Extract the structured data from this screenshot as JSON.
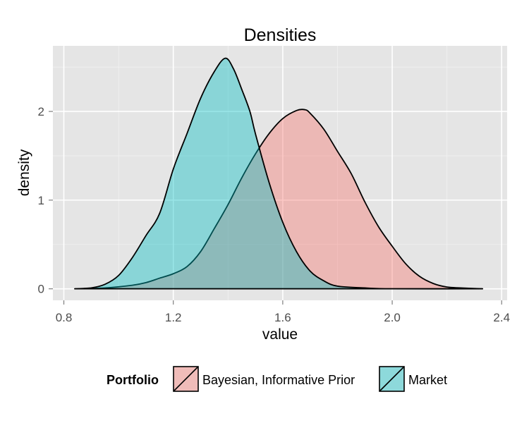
{
  "chart_data": {
    "type": "area",
    "title": "Densities",
    "xlabel": "value",
    "ylabel": "density",
    "xlim": [
      0.76,
      2.42
    ],
    "ylim": [
      -0.13,
      2.74
    ],
    "x_ticks": [
      "0.8",
      "1.2",
      "1.6",
      "2.0",
      "2.4"
    ],
    "x_tick_values": [
      0.8,
      1.2,
      1.6,
      2.0,
      2.4
    ],
    "y_ticks": [
      "0",
      "1",
      "2"
    ],
    "y_tick_values": [
      0,
      1,
      2
    ],
    "grid": true,
    "legend": {
      "title": "Portfolio",
      "position": "bottom"
    },
    "series": [
      {
        "name": "Bayesian, Informative Prior",
        "color": "#F8766D",
        "x": [
          0.84,
          0.95,
          1.05,
          1.1,
          1.15,
          1.2,
          1.25,
          1.3,
          1.35,
          1.4,
          1.45,
          1.5,
          1.55,
          1.6,
          1.65,
          1.68,
          1.7,
          1.75,
          1.8,
          1.85,
          1.9,
          1.95,
          2.0,
          2.05,
          2.1,
          2.15,
          2.2,
          2.25,
          2.33
        ],
        "y": [
          0.0,
          0.01,
          0.04,
          0.07,
          0.12,
          0.17,
          0.25,
          0.42,
          0.68,
          0.95,
          1.25,
          1.52,
          1.75,
          1.92,
          2.01,
          2.02,
          1.98,
          1.8,
          1.55,
          1.3,
          0.98,
          0.7,
          0.48,
          0.28,
          0.14,
          0.06,
          0.02,
          0.01,
          0.0
        ]
      },
      {
        "name": "Market",
        "color": "#00BFC4",
        "x": [
          0.84,
          0.9,
          0.95,
          1.0,
          1.05,
          1.1,
          1.15,
          1.2,
          1.25,
          1.3,
          1.35,
          1.39,
          1.42,
          1.45,
          1.48,
          1.5,
          1.55,
          1.6,
          1.65,
          1.7,
          1.75,
          1.8,
          1.9,
          2.0,
          2.33
        ],
        "y": [
          0.0,
          0.01,
          0.05,
          0.15,
          0.35,
          0.6,
          0.85,
          1.35,
          1.75,
          2.15,
          2.45,
          2.6,
          2.48,
          2.25,
          2.0,
          1.75,
          1.2,
          0.75,
          0.42,
          0.2,
          0.09,
          0.03,
          0.01,
          0.0,
          0.0
        ]
      }
    ]
  }
}
